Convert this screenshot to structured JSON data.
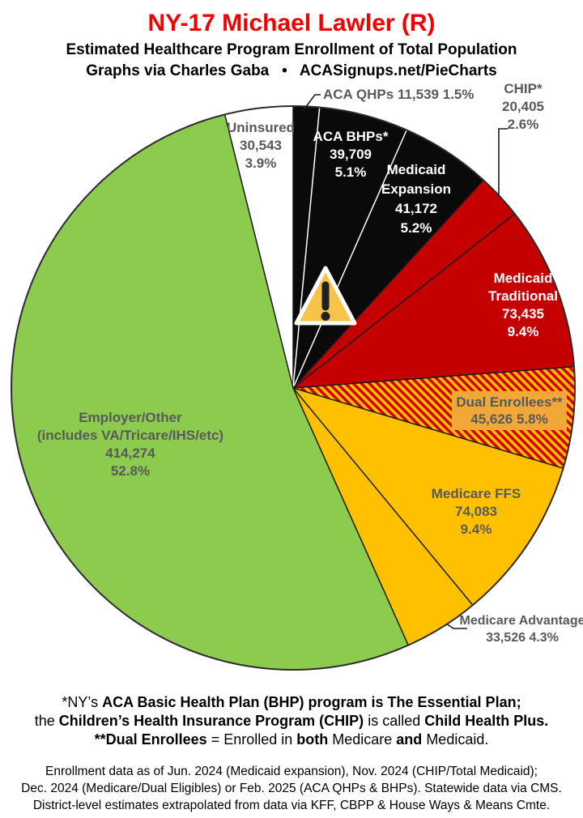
{
  "header": {
    "title": "NY-17 Michael Lawler (R)",
    "title_color": "#F40000",
    "subtitle1": "Estimated Healthcare Program Enrollment of Total Population",
    "subtitle2": "Graphs via Charles Gaba   •   ACASignups.net/PieCharts"
  },
  "chart_data": {
    "type": "pie",
    "title": "NY-17 Michael Lawler (R) — Estimated Healthcare Program Enrollment of Total Population",
    "start_angle_deg": 0,
    "direction": "clockwise",
    "slices": [
      {
        "name": "ACA QHPs",
        "value": "11,539",
        "pct": "1.5%",
        "share": 1.5,
        "color": "#0A0A0A",
        "edge": "#1A1A1A",
        "label_style": "outside-gray"
      },
      {
        "name": "ACA BHPs*",
        "value": "39,709",
        "pct": "5.1%",
        "share": 5.1,
        "color": "#0A0A0A",
        "edge": "#FFFFFF",
        "label_style": "inside-white"
      },
      {
        "name": "Medicaid Expansion",
        "value": "41,172",
        "pct": "5.2%",
        "share": 5.2,
        "color": "#0A0A0A",
        "edge": "#FFFFFF",
        "label_style": "inside-white"
      },
      {
        "name": "CHIP*",
        "value": "20,405",
        "pct": "2.6%",
        "share": 2.6,
        "color": "#C40000",
        "edge": "#1A1A1A",
        "label_style": "outside-gray"
      },
      {
        "name": "Medicaid Traditional",
        "value": "73,435",
        "pct": "9.4%",
        "share": 9.4,
        "color": "#C40000",
        "edge": "#1A1A1A",
        "label_style": "inside-white"
      },
      {
        "name": "Dual Enrollees**",
        "value": "45,626",
        "pct": "5.8%",
        "share": 5.8,
        "color": "hatch",
        "edge": "#1A1A1A",
        "label_style": "inside-box"
      },
      {
        "name": "Medicare FFS",
        "value": "74,083",
        "pct": "9.4%",
        "share": 9.4,
        "color": "#FFC000",
        "edge": "#1A1A1A",
        "label_style": "inside-gray"
      },
      {
        "name": "Medicare Advantage",
        "value": "33,526",
        "pct": "4.3%",
        "share": 4.3,
        "color": "#FFC000",
        "edge": "#1A1A1A",
        "label_style": "outside-gray"
      },
      {
        "name": "Employer/Other",
        "sublabel": "(includes VA/Tricare/IHS/etc)",
        "value": "414,274",
        "pct": "52.8%",
        "share": 52.8,
        "color": "#8CCB4E",
        "edge": "#1A1A1A",
        "label_style": "inside-gray"
      },
      {
        "name": "Uninsured",
        "value": "30,543",
        "pct": "3.9%",
        "share": 3.9,
        "color": "#FFFFFF",
        "edge": "#1A1A1A",
        "label_style": "inside-gray"
      }
    ],
    "hatch": {
      "bg": "#FFC000",
      "stripe": "#D40000"
    },
    "dual_label_bg": "#F2A838",
    "warning_icon": {
      "fill": "#F7C34B",
      "border": "#FFFFFF",
      "glyph_color": "#232021"
    }
  },
  "footnotes": {
    "line1": [
      {
        "t": "*NY’s ",
        "b": false
      },
      {
        "t": "ACA Basic Health Plan (BHP) program is The Essential Plan;",
        "b": true
      }
    ],
    "line2": [
      {
        "t": "the ",
        "b": false
      },
      {
        "t": "Children’s Health Insurance Program (CHIP)",
        "b": true
      },
      {
        "t": " is called ",
        "b": false
      },
      {
        "t": "Child Health Plus.",
        "b": true
      }
    ],
    "line3": [
      {
        "t": "**Dual Enrollees",
        "b": true
      },
      {
        "t": " = Enrolled in ",
        "b": false
      },
      {
        "t": "both",
        "b": true
      },
      {
        "t": " Medicare ",
        "b": false
      },
      {
        "t": "and",
        "b": true
      },
      {
        "t": " Medicaid.",
        "b": false
      }
    ]
  },
  "source": {
    "line1": "Enrollment data as of Jun. 2024 (Medicaid expansion), Nov. 2024 (CHIP/Total Medicaid);",
    "line2": "Dec. 2024 (Medicare/Dual Eligibles) or Feb. 2025 (ACA QHPs & BHPs). Statewide data via CMS.",
    "line3": "District-level estimates extrapolated from data via KFF, CBPP & House Ways & Means Cmte."
  }
}
